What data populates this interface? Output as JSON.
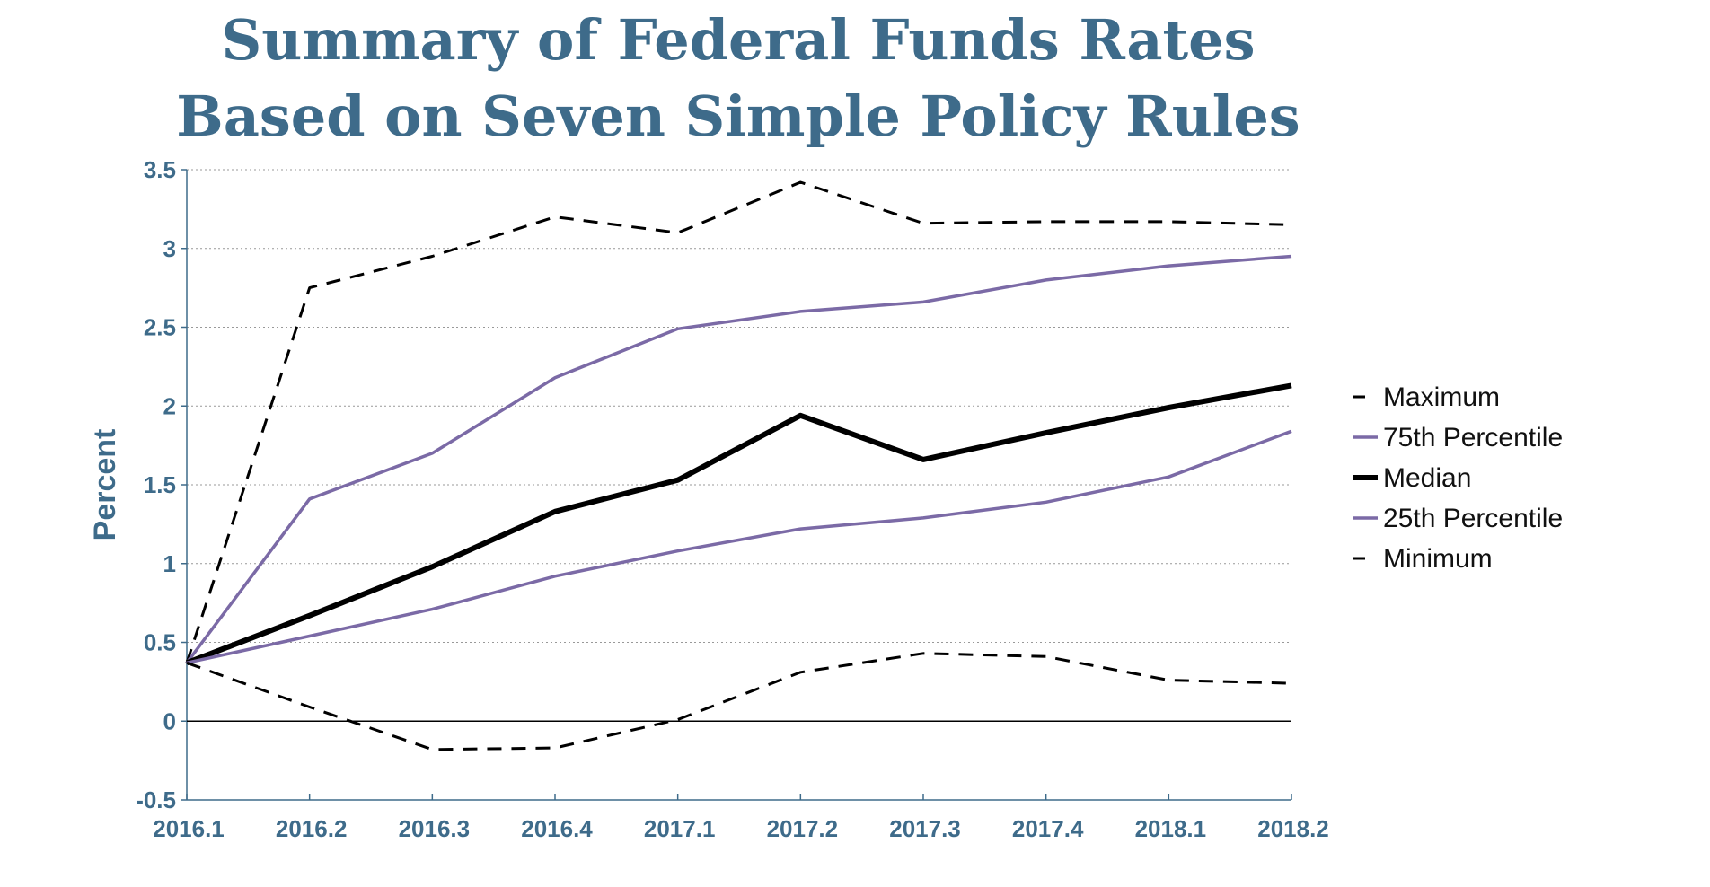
{
  "chart_data": {
    "type": "line",
    "title": [
      "Summary of Federal Funds Rates",
      "Based on Seven Simple Policy Rules"
    ],
    "xlabel": "",
    "ylabel": "Percent",
    "ylim": [
      -0.5,
      3.5
    ],
    "yticks": [
      "3.5",
      "3",
      "2.5",
      "2",
      "1.5",
      "1",
      "0.5",
      "0",
      "-0.5"
    ],
    "categories": [
      "2016.1",
      "2016.2",
      "2016.3",
      "2016.4",
      "2017.1",
      "2017.2",
      "2017.3",
      "2017.4",
      "2018.1",
      "2018.2"
    ],
    "grid": true,
    "legend_position": "right",
    "series": [
      {
        "name": "Maximum",
        "style": "dashed",
        "color": "#000000",
        "values": [
          0.37,
          2.75,
          2.95,
          3.2,
          3.1,
          3.42,
          3.16,
          3.17,
          3.17,
          3.15
        ]
      },
      {
        "name": "75th Percentile",
        "style": "solid",
        "color": "#7b6aa6",
        "values": [
          0.37,
          1.41,
          1.7,
          2.18,
          2.49,
          2.6,
          2.66,
          2.8,
          2.89,
          2.95
        ]
      },
      {
        "name": "Median",
        "style": "bold",
        "color": "#000000",
        "values": [
          0.37,
          0.67,
          0.98,
          1.33,
          1.53,
          1.94,
          1.66,
          1.83,
          1.99,
          2.13
        ]
      },
      {
        "name": "25th Percentile",
        "style": "solid",
        "color": "#7b6aa6",
        "values": [
          0.37,
          0.54,
          0.71,
          0.92,
          1.08,
          1.22,
          1.29,
          1.39,
          1.55,
          1.84
        ]
      },
      {
        "name": "Minimum",
        "style": "dashed",
        "color": "#000000",
        "values": [
          0.37,
          0.09,
          -0.18,
          -0.17,
          0.01,
          0.31,
          0.43,
          0.41,
          0.26,
          0.24
        ]
      }
    ]
  },
  "colors": {
    "title": "#3e6b8a",
    "axis": "#3e6b8a",
    "grid": "#999999",
    "zero_line": "#000000"
  }
}
